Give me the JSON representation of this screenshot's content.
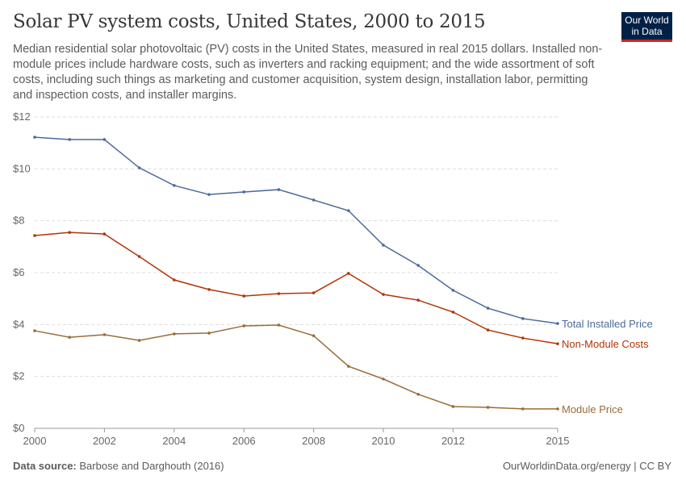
{
  "header": {
    "title": "Solar PV system costs, United States, 2000 to 2015",
    "subtitle": "Median residential solar photovoltaic (PV) costs in the United States, measured in real 2015 dollars. Installed non-module prices include hardware costs, such as inverters and racking equipment; and the wide assortment of soft costs, including such things as marketing and customer acquisition, system design, installation labor, permitting and inspection costs, and installer margins.",
    "logo": "Our World in Data"
  },
  "footer": {
    "source_label": "Data source:",
    "source": "Barbose and Darghouth (2016)",
    "right": "OurWorldinData.org/energy | CC BY"
  },
  "chart_data": {
    "type": "line",
    "x": [
      2000,
      2001,
      2002,
      2003,
      2004,
      2005,
      2006,
      2007,
      2008,
      2009,
      2010,
      2011,
      2012,
      2013,
      2014,
      2015
    ],
    "xticks": [
      "2000",
      "2002",
      "2004",
      "2006",
      "2008",
      "2010",
      "2012",
      "2015"
    ],
    "yticks": [
      "$0",
      "$2",
      "$4",
      "$6",
      "$8",
      "$10",
      "$12"
    ],
    "ylim": [
      0,
      12
    ],
    "xlim": [
      2000,
      2015
    ],
    "grid": true,
    "legend": "right-end labels",
    "series": [
      {
        "name": "Total Installed Price",
        "color": "#4c6a9c",
        "values": [
          11.22,
          11.13,
          11.13,
          10.04,
          9.36,
          9.01,
          9.11,
          9.2,
          8.8,
          8.39,
          7.06,
          6.28,
          5.32,
          4.63,
          4.23,
          4.04
        ]
      },
      {
        "name": "Non-Module Costs",
        "color": "#b13507",
        "values": [
          7.43,
          7.55,
          7.49,
          6.62,
          5.72,
          5.35,
          5.1,
          5.19,
          5.22,
          5.97,
          5.16,
          4.94,
          4.48,
          3.79,
          3.48,
          3.26
        ]
      },
      {
        "name": "Module Price",
        "color": "#996d39",
        "values": [
          3.76,
          3.51,
          3.61,
          3.39,
          3.64,
          3.67,
          3.95,
          3.98,
          3.57,
          2.39,
          1.9,
          1.31,
          0.84,
          0.81,
          0.75,
          0.75
        ]
      }
    ]
  }
}
